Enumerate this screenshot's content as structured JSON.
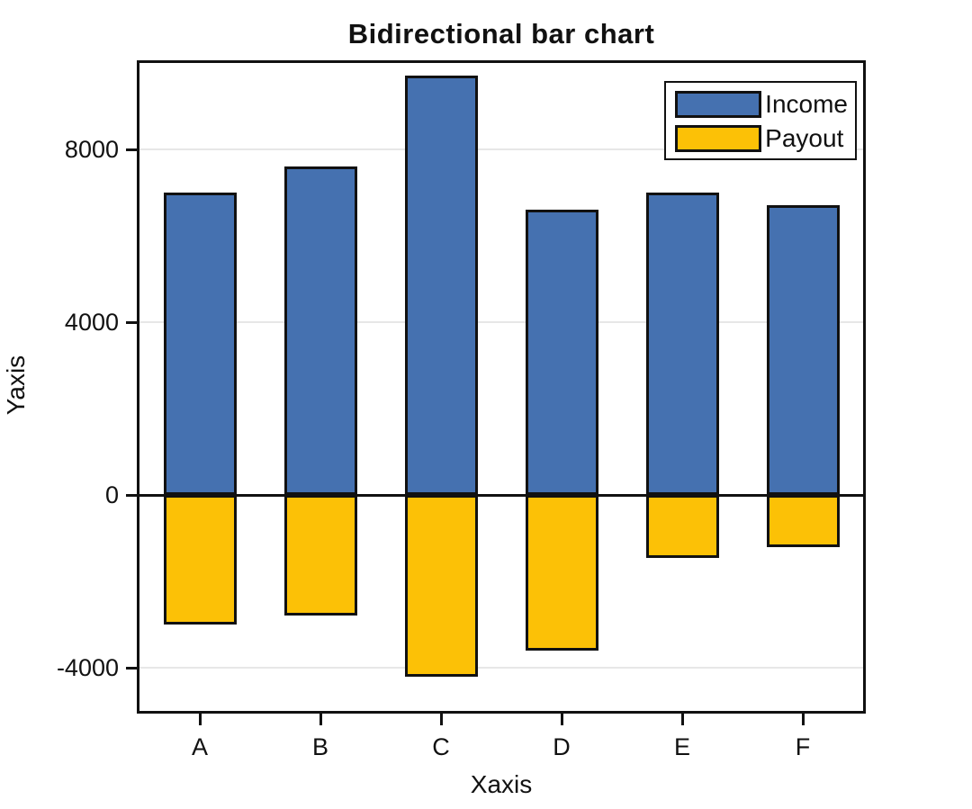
{
  "chart_data": {
    "type": "bar",
    "variant": "bidirectional",
    "title": "Bidirectional bar chart",
    "xlabel": "Xaxis",
    "ylabel": "Yaxis",
    "categories": [
      "A",
      "B",
      "C",
      "D",
      "E",
      "F"
    ],
    "series": [
      {
        "name": "Income",
        "color": "#4571B0",
        "values": [
          7000,
          7600,
          9700,
          6600,
          7000,
          6700
        ]
      },
      {
        "name": "Payout",
        "color": "#FCC106",
        "values": [
          -3000,
          -2800,
          -4200,
          -3600,
          -1450,
          -1200
        ]
      }
    ],
    "ylim": [
      -5000,
      10000
    ],
    "yticks": [
      {
        "value": 8000,
        "label": "8000"
      },
      {
        "value": 4000,
        "label": "4000"
      },
      {
        "value": 0,
        "label": "0"
      },
      {
        "value": -4000,
        "label": "-4000"
      }
    ],
    "grid": "horizontal",
    "zero_line": true,
    "legend_position": "top-right",
    "colors": {
      "income": "#4571B0",
      "payout": "#FCC106",
      "axis": "#111111",
      "gridline": "#E7E7E7",
      "background": "#FFFFFF"
    }
  }
}
